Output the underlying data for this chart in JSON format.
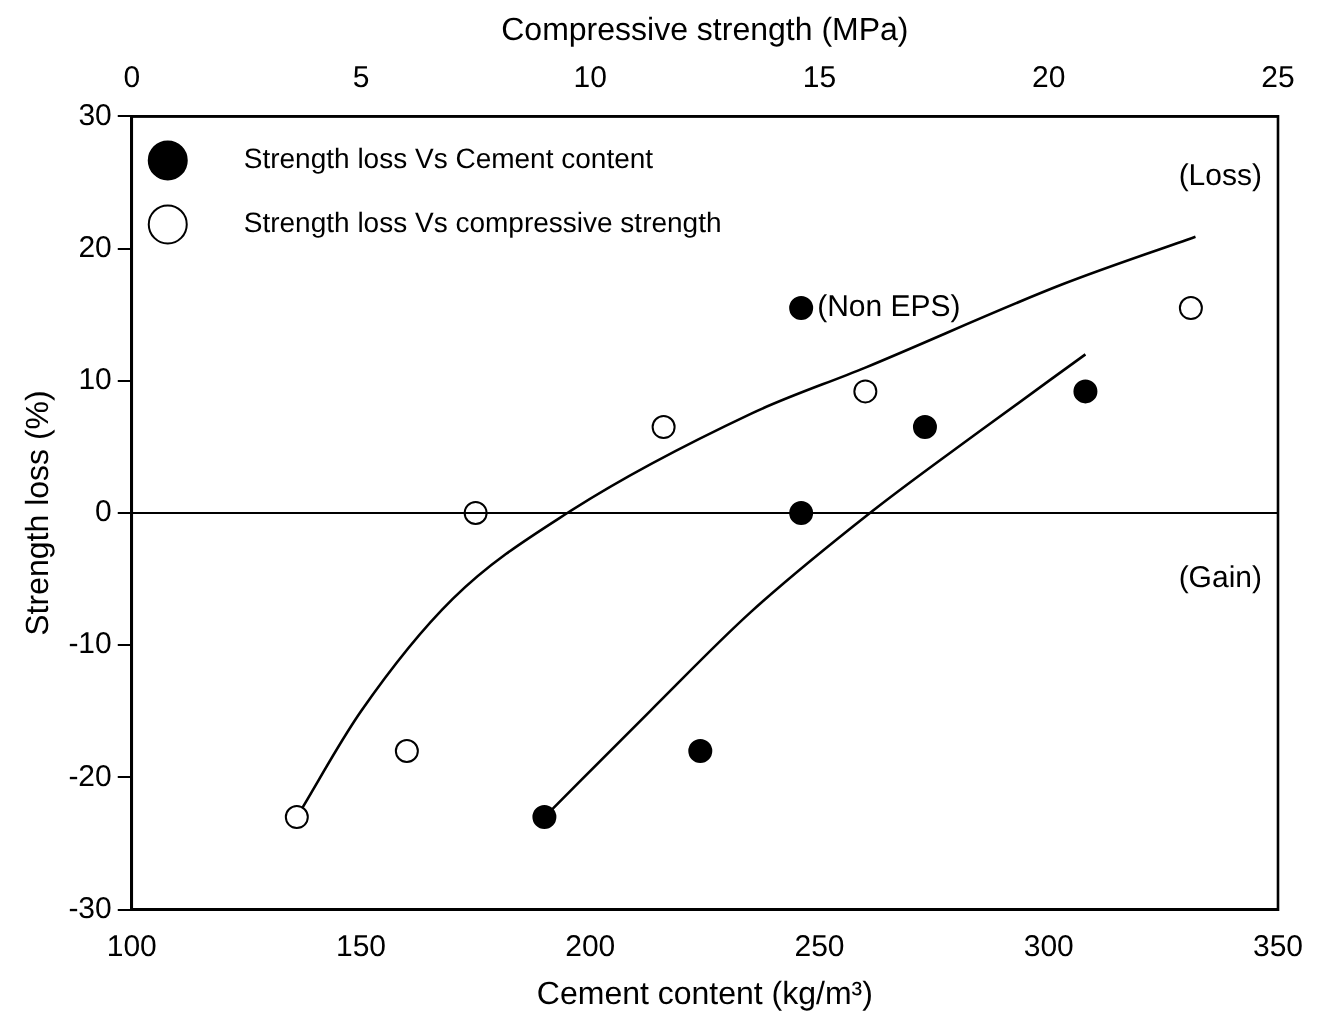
{
  "chart_data": {
    "type": "scatter",
    "xlabel": "Cement content (kg/m³)",
    "x2label": "Compressive strength (MPa)",
    "ylabel": "Strength loss (%)",
    "xlim": [
      100,
      350
    ],
    "xticks": [
      100,
      150,
      200,
      250,
      300,
      350
    ],
    "x2lim": [
      0,
      25
    ],
    "x2ticks": [
      0,
      5,
      10,
      15,
      20,
      25
    ],
    "ylim": [
      -30,
      30
    ],
    "yticks": [
      -30,
      -20,
      -10,
      0,
      10,
      20,
      30
    ],
    "legend": "top left",
    "marker": "circle",
    "ref_lines": [
      {
        "axis": "y",
        "value": 0
      }
    ],
    "annotations": [
      {
        "text": "(Non EPS)",
        "x": 246,
        "y": 15.5
      },
      "(Loss)",
      "(Gain)"
    ],
    "series": [
      {
        "name": "Strength loss Vs Cement content",
        "color": "#000000",
        "x": [
          190,
          224,
          246,
          246,
          273,
          308
        ],
        "values": [
          -23,
          -18,
          0,
          15.5,
          6.5,
          9.2
        ]
      },
      {
        "name": "Strength loss Vs compressive strength",
        "color": "#000000",
        "axis": "x2",
        "x": [
          3.6,
          6.0,
          7.5,
          11.6,
          16.0,
          23.1
        ],
        "values": [
          -23,
          -18,
          0,
          6.5,
          9.2,
          15.5
        ]
      },
      {
        "type": "line",
        "marker": "none",
        "color": "#000000",
        "x": [
          190,
          213,
          235,
          261,
          285,
          308
        ],
        "values": [
          -23,
          -15,
          -7.5,
          0,
          6.2,
          12
        ]
      },
      {
        "type": "line",
        "marker": "none",
        "color": "#000000",
        "axis": "x2",
        "x": [
          3.6,
          5.0,
          7.0,
          9.5,
          13.5,
          16.0,
          20.3,
          23.2
        ],
        "values": [
          -23,
          -15,
          -6.5,
          0,
          7.5,
          11,
          17.3,
          20.9
        ]
      }
    ]
  }
}
